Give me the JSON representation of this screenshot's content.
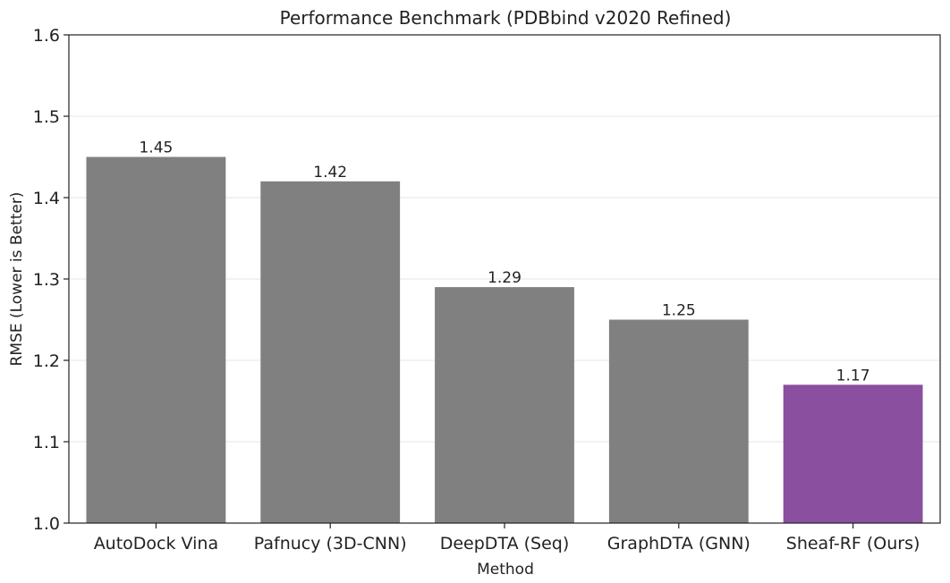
{
  "chart_data": {
    "type": "bar",
    "title": "Performance Benchmark (PDBbind v2020 Refined)",
    "xlabel": "Method",
    "ylabel": "RMSE (Lower is Better)",
    "categories": [
      "AutoDock Vina",
      "Pafnucy (3D-CNN)",
      "DeepDTA (Seq)",
      "GraphDTA (GNN)",
      "Sheaf-RF (Ours)"
    ],
    "values": [
      1.45,
      1.42,
      1.29,
      1.25,
      1.17
    ],
    "data_labels": [
      "1.45",
      "1.42",
      "1.29",
      "1.25",
      "1.17"
    ],
    "bar_colors": [
      "#808080",
      "#808080",
      "#808080",
      "#808080",
      "#8a4f9e"
    ],
    "ylim": [
      1.0,
      1.6
    ],
    "yticks": [
      1.0,
      1.1,
      1.2,
      1.3,
      1.4,
      1.5,
      1.6
    ],
    "ytick_labels": [
      "1.0",
      "1.1",
      "1.2",
      "1.3",
      "1.4",
      "1.5",
      "1.6"
    ],
    "grid": "horizontal",
    "legend": "none"
  }
}
